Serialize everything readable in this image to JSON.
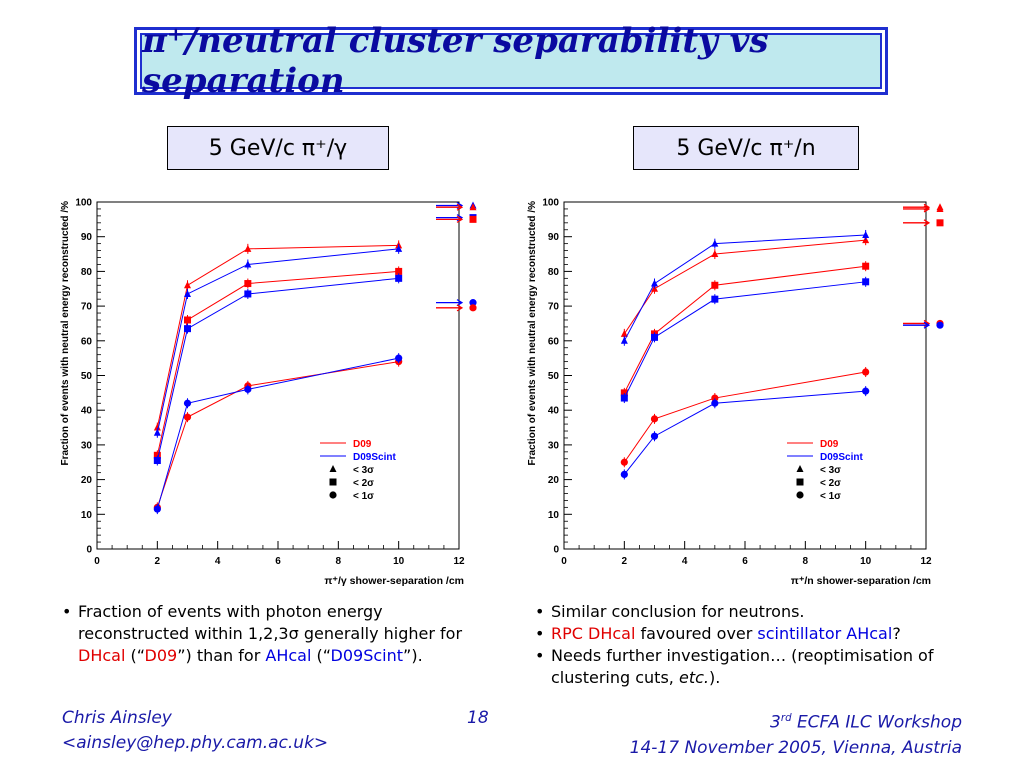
{
  "slide": {
    "title": "π⁺/neutral cluster separability vs separation",
    "slide_number": "18",
    "author_name": "Chris Ainsley",
    "author_email": "<ainsley@hep.phy.cam.ac.uk>",
    "workshop_sup": "rd",
    "workshop_num": "3",
    "workshop_name": "ECFA ILC Workshop",
    "workshop_dates": "14-17 November 2005, Vienna, Austria"
  },
  "left_label": "5 GeV/c  π⁺/γ",
  "right_label": "5 GeV/c  π⁺/n",
  "left_bullets": {
    "b1_prefix": "Fraction of events with photon energy reconstructed within 1,2,3σ generally higher for ",
    "b1_dhcal": "DHcal",
    "b1_open": " (“",
    "b1_d09": "D09",
    "b1_mid": "”) than for ",
    "b1_ahcal": "AHcal",
    "b1_open2": " (“",
    "b1_d09scint": "D09Scint",
    "b1_close": "”)."
  },
  "right_bullets": {
    "b1": "Similar conclusion for neutrons.",
    "b2_rpc": "RPC DHcal",
    "b2_mid": " favoured over ",
    "b2_scint": "scintillator AHcal",
    "b2_q": "?",
    "b3_a": "Needs further investigation… (reoptimisation of clustering cuts, ",
    "b3_etc": "etc.",
    "b3_b": ")."
  },
  "colors": {
    "d09": "#ff0000",
    "d09scint": "#0000ff",
    "title": "#0a0aa0",
    "footer": "#1a1aa8"
  },
  "chart_data": [
    {
      "type": "line",
      "xlabel": "π⁺/γ shower-separation /cm",
      "ylabel": "Fraction of events with neutral energy reconstructed /%",
      "xlim": [
        0,
        12
      ],
      "ylim": [
        0,
        100
      ],
      "xticks": [
        0,
        2,
        4,
        6,
        8,
        10,
        12
      ],
      "yticks": [
        0,
        10,
        20,
        30,
        40,
        50,
        60,
        70,
        80,
        90,
        100
      ],
      "x": [
        2,
        3,
        5,
        10
      ],
      "legend": {
        "d09": "D09",
        "d09scint": "D09Scint",
        "m3": "< 3σ",
        "m2": "< 2σ",
        "m1": "< 1σ"
      },
      "series": [
        {
          "name": "D09",
          "marker": "triangle",
          "values": [
            35,
            76,
            86.5,
            87.5
          ]
        },
        {
          "name": "D09Scint",
          "marker": "triangle",
          "values": [
            33.5,
            73.5,
            82,
            86.5
          ]
        },
        {
          "name": "D09",
          "marker": "square",
          "values": [
            27,
            66,
            76.5,
            80
          ]
        },
        {
          "name": "D09Scint",
          "marker": "square",
          "values": [
            25.5,
            63.5,
            73.5,
            78
          ]
        },
        {
          "name": "D09",
          "marker": "circle",
          "values": [
            12,
            38,
            47,
            54
          ]
        },
        {
          "name": "D09Scint",
          "marker": "circle",
          "values": [
            11.5,
            42,
            46,
            55
          ]
        }
      ],
      "asymptotes": [
        {
          "color": "d09scint",
          "marker": "triangle",
          "value": 99
        },
        {
          "color": "d09",
          "marker": "triangle",
          "value": 98.5
        },
        {
          "color": "d09scint",
          "marker": "square",
          "value": 95.5
        },
        {
          "color": "d09",
          "marker": "square",
          "value": 95
        },
        {
          "color": "d09scint",
          "marker": "circle",
          "value": 71
        },
        {
          "color": "d09",
          "marker": "circle",
          "value": 69.5
        }
      ]
    },
    {
      "type": "line",
      "xlabel": "π⁺/n shower-separation /cm",
      "ylabel": "Fraction of events with neutral energy reconstructed /%",
      "xlim": [
        0,
        12
      ],
      "ylim": [
        0,
        100
      ],
      "xticks": [
        0,
        2,
        4,
        6,
        8,
        10,
        12
      ],
      "yticks": [
        0,
        10,
        20,
        30,
        40,
        50,
        60,
        70,
        80,
        90,
        100
      ],
      "x": [
        2,
        3,
        5,
        10
      ],
      "legend": {
        "d09": "D09",
        "d09scint": "D09Scint",
        "m3": "< 3σ",
        "m2": "< 2σ",
        "m1": "< 1σ"
      },
      "series": [
        {
          "name": "D09",
          "marker": "triangle",
          "values": [
            62,
            75,
            85,
            89
          ]
        },
        {
          "name": "D09Scint",
          "marker": "triangle",
          "values": [
            60,
            76.5,
            88,
            90.5
          ]
        },
        {
          "name": "D09",
          "marker": "square",
          "values": [
            45,
            62,
            76,
            81.5
          ]
        },
        {
          "name": "D09Scint",
          "marker": "square",
          "values": [
            43.5,
            61,
            72,
            77
          ]
        },
        {
          "name": "D09",
          "marker": "circle",
          "values": [
            25,
            37.5,
            43.5,
            51
          ]
        },
        {
          "name": "D09Scint",
          "marker": "circle",
          "values": [
            21.5,
            32.5,
            42,
            45.5
          ]
        }
      ],
      "asymptotes": [
        {
          "color": "d09",
          "marker": "triangle",
          "value": 98.5
        },
        {
          "color": "d09",
          "marker": "triangle",
          "value": 98
        },
        {
          "color": "d09",
          "marker": "square",
          "value": 94
        },
        {
          "color": "d09",
          "marker": "circle",
          "value": 65
        },
        {
          "color": "d09scint",
          "marker": "circle",
          "value": 64.5
        }
      ]
    }
  ]
}
